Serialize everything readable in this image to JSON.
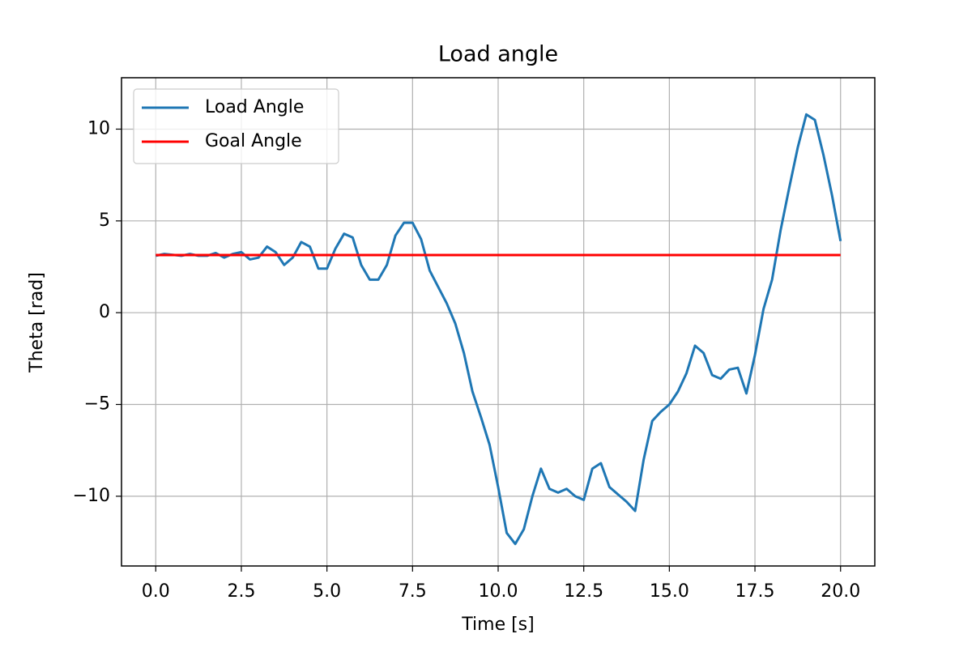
{
  "chart_data": {
    "type": "line",
    "title": "Load angle",
    "xlabel": "Time [s]",
    "ylabel": "Theta [rad]",
    "xlim": [
      -1.0,
      21.0
    ],
    "ylim": [
      -13.8,
      12.8
    ],
    "xticks": [
      {
        "value": 0,
        "label": "0.0"
      },
      2.5,
      {
        "value": 5,
        "label": "5.0"
      },
      7.5,
      {
        "value": 10,
        "label": "10.0"
      },
      12.5,
      {
        "value": 15,
        "label": "15.0"
      },
      17.5,
      {
        "value": 20,
        "label": "20.0"
      }
    ],
    "yticks": [
      {
        "value": -10,
        "label": "−10"
      },
      {
        "value": -5,
        "label": "−5"
      },
      0,
      5,
      10
    ],
    "grid": true,
    "legend": "upper left",
    "series": [
      {
        "name": "Load Angle",
        "color": "#1f77b4",
        "x": [
          0,
          0.25,
          0.5,
          0.75,
          1,
          1.25,
          1.5,
          1.75,
          2,
          2.25,
          2.5,
          2.75,
          3,
          3.25,
          3.5,
          3.75,
          4,
          4.25,
          4.5,
          4.75,
          5,
          5.25,
          5.5,
          5.75,
          6,
          6.25,
          6.5,
          6.75,
          7,
          7.25,
          7.5,
          7.75,
          8,
          8.25,
          8.5,
          8.75,
          9,
          9.25,
          9.5,
          9.75,
          10,
          10.25,
          10.5,
          10.75,
          11,
          11.25,
          11.5,
          11.75,
          12,
          12.25,
          12.5,
          12.75,
          13,
          13.25,
          13.5,
          13.75,
          14,
          14.25,
          14.5,
          14.75,
          15,
          15.25,
          15.5,
          15.75,
          16,
          16.25,
          16.5,
          16.75,
          17,
          17.25,
          17.5,
          17.75,
          18,
          18.25,
          18.5,
          18.75,
          19,
          19.25,
          19.5,
          19.75,
          20
        ],
        "values": [
          3.1,
          3.2,
          3.15,
          3.1,
          3.2,
          3.1,
          3.1,
          3.25,
          3.0,
          3.2,
          3.3,
          2.9,
          3.0,
          3.6,
          3.3,
          2.6,
          3.0,
          3.85,
          3.6,
          2.4,
          2.4,
          3.5,
          4.3,
          4.1,
          2.6,
          1.8,
          1.8,
          2.6,
          4.2,
          4.9,
          4.9,
          4.0,
          2.3,
          1.4,
          0.5,
          -0.6,
          -2.2,
          -4.3,
          -5.7,
          -7.2,
          -9.5,
          -12.0,
          -12.6,
          -11.8,
          -10.0,
          -8.5,
          -9.6,
          -9.8,
          -9.6,
          -10.0,
          -10.2,
          -8.5,
          -8.2,
          -9.5,
          -9.9,
          -10.3,
          -10.8,
          -8.0,
          -5.9,
          -5.4,
          -5.0,
          -4.3,
          -3.3,
          -1.8,
          -2.2,
          -3.4,
          -3.6,
          -3.1,
          -3.0,
          -4.4,
          -2.3,
          0.2,
          1.8,
          4.5,
          6.8,
          9.0,
          10.8,
          10.5,
          8.6,
          6.4,
          3.9
        ]
      },
      {
        "name": "Goal Angle",
        "color": "#ff0000",
        "x": [
          0,
          20
        ],
        "values": [
          3.14,
          3.14
        ]
      }
    ]
  }
}
